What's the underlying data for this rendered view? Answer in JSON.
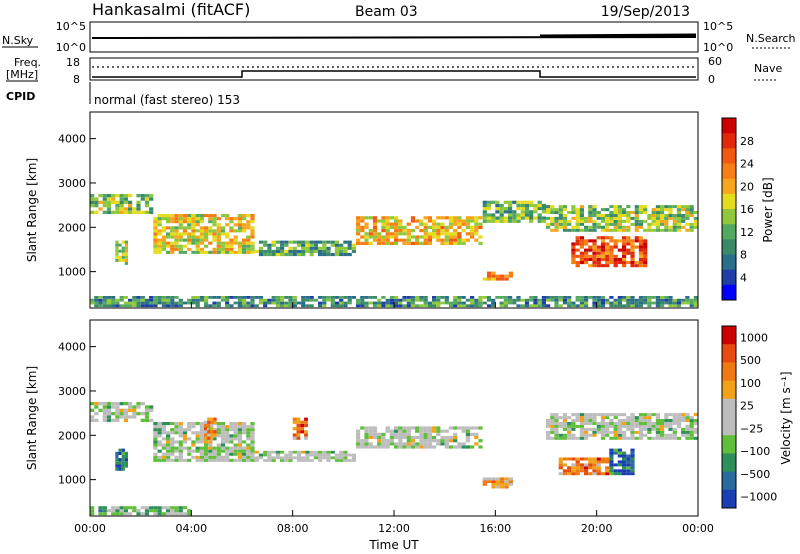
{
  "header": {
    "radar": "Hankasalmi (fitACF)",
    "beam": "Beam 03",
    "date": "19/Sep/2013"
  },
  "status_panels": {
    "nsky_label": "N.Sky",
    "nsearch_label": "N.Search",
    "nsky_ticks": [
      "10^5",
      "10^0"
    ],
    "nsearch_ticks": [
      "10^5",
      "10^0"
    ],
    "freq_label_line1": "Freq.",
    "freq_label_line2": "[MHz]",
    "freq_ticks": [
      "18",
      "8"
    ],
    "nave_label": "Nave",
    "nave_ticks": [
      "60",
      "0"
    ],
    "cpid_label": "CPID",
    "cpid_text": "normal (fast stereo) 153"
  },
  "colors": {
    "power_scale": [
      "#0000ff",
      "#1f3fa6",
      "#2b6e8a",
      "#3a8a6a",
      "#55a860",
      "#8fc83a",
      "#e6dc1e",
      "#f7a51c",
      "#f77e14",
      "#ef5a10",
      "#e2280c",
      "#cc0000"
    ],
    "velocity_scale": [
      "#1a3fb5",
      "#2a6aa0",
      "#2f8f5a",
      "#5fbf3a",
      "#bdbdbd",
      "#bdbdbd",
      "#f2a218",
      "#f07a12",
      "#e84a10",
      "#cc0000"
    ]
  },
  "chart_data": [
    {
      "type": "heatmap",
      "name": "power",
      "ylabel": "Slant Range [km]",
      "ylim": [
        180,
        4600
      ],
      "yticks": [
        1000,
        2000,
        3000,
        4000
      ],
      "xlim": [
        0,
        24
      ],
      "xticks": [
        "00:00",
        "04:00",
        "08:00",
        "12:00",
        "16:00",
        "20:00",
        "00:00"
      ],
      "colorbar_label": "Power [dB]",
      "colorbar_ticks": [
        "4",
        "8",
        "12",
        "16",
        "20",
        "24",
        "28"
      ],
      "colorbar_range": [
        0,
        30
      ],
      "bands": [
        {
          "t0": 0,
          "t1": 2.5,
          "r0": 2300,
          "r1": 2750,
          "level": 0.45
        },
        {
          "t0": 2.5,
          "t1": 6.5,
          "r0": 1400,
          "r1": 2300,
          "level": 0.55
        },
        {
          "t0": 6.5,
          "t1": 10.5,
          "r0": 1350,
          "r1": 1700,
          "level": 0.35
        },
        {
          "t0": 10.5,
          "t1": 15.5,
          "r0": 1600,
          "r1": 2250,
          "level": 0.6
        },
        {
          "t0": 15.5,
          "t1": 18,
          "r0": 2100,
          "r1": 2600,
          "level": 0.4
        },
        {
          "t0": 18,
          "t1": 24,
          "r0": 1900,
          "r1": 2500,
          "level": 0.45
        },
        {
          "t0": 19,
          "t1": 22,
          "r0": 1100,
          "r1": 1800,
          "level": 0.8
        },
        {
          "t0": 1,
          "t1": 1.5,
          "r0": 1150,
          "r1": 1700,
          "level": 0.5
        },
        {
          "t0": 15.5,
          "t1": 16.7,
          "r0": 800,
          "r1": 1000,
          "level": 0.7
        },
        {
          "t0": 0,
          "t1": 24,
          "r0": 200,
          "r1": 450,
          "level": 0.3
        }
      ]
    },
    {
      "type": "heatmap",
      "name": "velocity",
      "ylabel": "Slant Range [km]",
      "ylim": [
        180,
        4600
      ],
      "yticks": [
        1000,
        2000,
        3000,
        4000
      ],
      "xlim": [
        0,
        24
      ],
      "xticks": [
        "00:00",
        "04:00",
        "08:00",
        "12:00",
        "16:00",
        "20:00",
        "00:00"
      ],
      "xlabel": "Time UT",
      "colorbar_label": "Velocity [m s⁻¹]",
      "colorbar_ticks": [
        "1000",
        "500",
        "100",
        "25",
        "−25",
        "−100",
        "−500",
        "−1000"
      ],
      "colorbar_range": [
        -1000,
        1000
      ],
      "bands": [
        {
          "t0": 0,
          "t1": 2.5,
          "r0": 2300,
          "r1": 2750,
          "level": 0.45
        },
        {
          "t0": 2.5,
          "t1": 6.5,
          "r0": 1400,
          "r1": 2300,
          "level": 0.45
        },
        {
          "t0": 6.5,
          "t1": 10.5,
          "r0": 1400,
          "r1": 1650,
          "level": 0.45
        },
        {
          "t0": 10.5,
          "t1": 15.5,
          "r0": 1700,
          "r1": 2200,
          "level": 0.45
        },
        {
          "t0": 18,
          "t1": 24,
          "r0": 1900,
          "r1": 2500,
          "level": 0.45
        },
        {
          "t0": 1,
          "t1": 1.5,
          "r0": 1200,
          "r1": 1700,
          "level": 0.2
        },
        {
          "t0": 4.5,
          "t1": 5,
          "r0": 1900,
          "r1": 2400,
          "level": 0.7
        },
        {
          "t0": 8,
          "t1": 8.6,
          "r0": 1900,
          "r1": 2400,
          "level": 0.75
        },
        {
          "t0": 15.5,
          "t1": 16.7,
          "r0": 800,
          "r1": 1050,
          "level": 0.7
        },
        {
          "t0": 18.5,
          "t1": 20.5,
          "r0": 1100,
          "r1": 1500,
          "level": 0.75
        },
        {
          "t0": 20.5,
          "t1": 21.5,
          "r0": 1100,
          "r1": 1700,
          "level": 0.15
        },
        {
          "t0": 0,
          "t1": 4,
          "r0": 200,
          "r1": 400,
          "level": 0.35
        }
      ]
    }
  ]
}
